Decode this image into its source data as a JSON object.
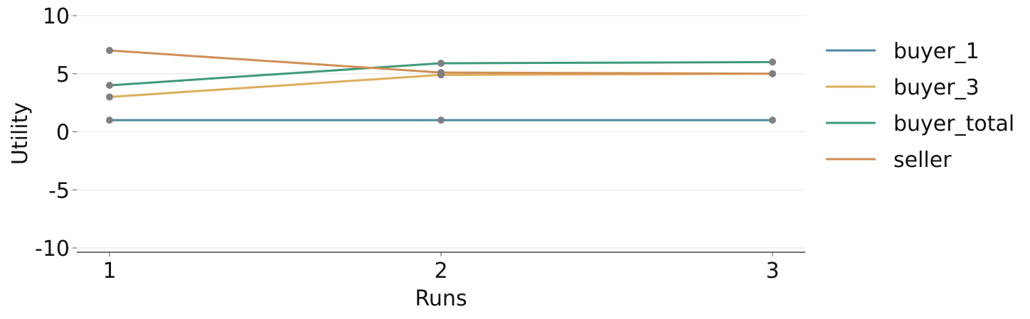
{
  "chart_data": {
    "type": "line",
    "xlabel": "Runs",
    "ylabel": "Utility",
    "x": [
      1,
      2,
      3
    ],
    "x_tick_labels": [
      "1",
      "2",
      "3"
    ],
    "ylim": [
      -10,
      10
    ],
    "y_ticks": [
      10,
      5,
      0,
      -5,
      -10
    ],
    "y_tick_labels": [
      "10",
      "5",
      "0",
      "-5",
      "-10"
    ],
    "grid": "horizontal",
    "legend_position": "right",
    "marker_color": "#808080",
    "series": [
      {
        "name": "buyer_1",
        "color": "#4a8aa0",
        "values": [
          1,
          1,
          1
        ]
      },
      {
        "name": "buyer_3",
        "color": "#dcae5a",
        "values": [
          3,
          4.9,
          5.0
        ]
      },
      {
        "name": "buyer_total",
        "color": "#3f9a7a",
        "values": [
          4,
          5.9,
          6.0
        ]
      },
      {
        "name": "seller",
        "color": "#d08f55",
        "values": [
          7,
          5.1,
          5.0
        ]
      }
    ]
  }
}
